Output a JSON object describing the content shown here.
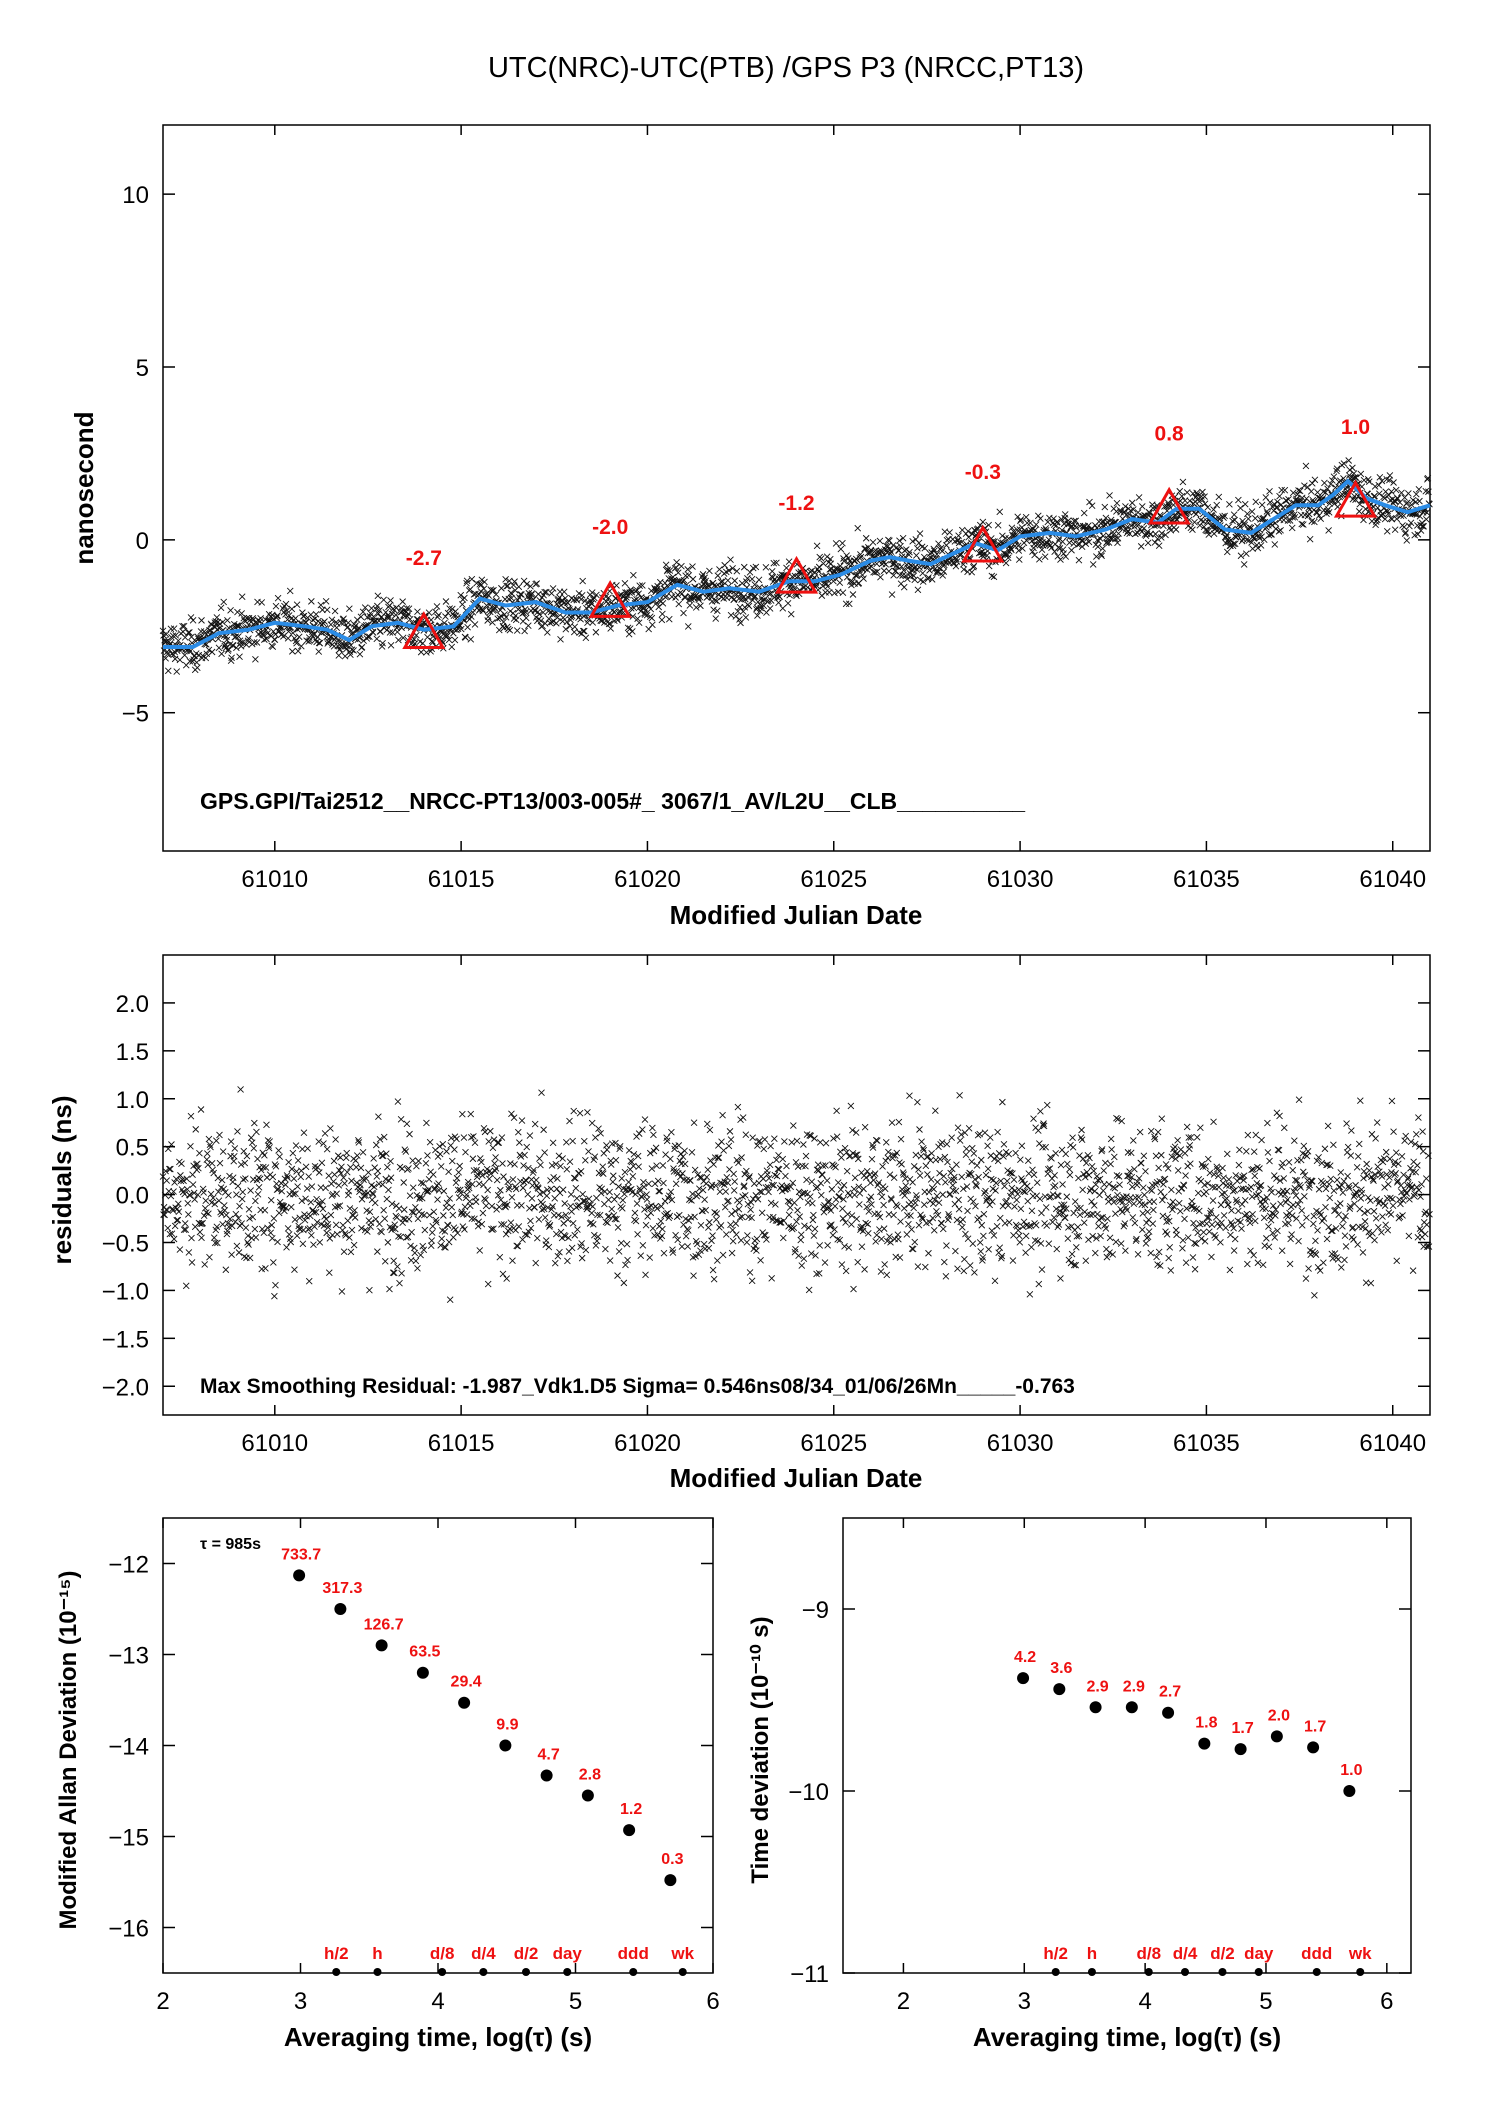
{
  "title": "UTC(NRC)-UTC(PTB)  /GPS  P3  (NRCC,PT13)",
  "colors": {
    "frame": "#000000",
    "points": "#000000",
    "smooth": "#2b8ce6",
    "annot": "#ee1111"
  },
  "chart_data": [
    {
      "type": "scatter",
      "id": "main",
      "xlabel": "Modified Julian Date",
      "ylabel": "nanosecond",
      "xlim": [
        61007.0,
        61041.0
      ],
      "ylim": [
        -9.0,
        12.0
      ],
      "xticks": [
        61010,
        61015,
        61020,
        61025,
        61030,
        61035,
        61040
      ],
      "yticks": [
        -5,
        0,
        5,
        10
      ],
      "ytick_labels": [
        "−5",
        "0",
        "5",
        "10"
      ],
      "annotation": "GPS.GPI/Tai2512__NRCC-PT13/003-005#_  3067/1_AV/L2U__CLB__________",
      "markers": [
        {
          "x": 61014,
          "y": -2.7,
          "label": "-2.7"
        },
        {
          "x": 61019,
          "y": -1.8,
          "label": "-2.0"
        },
        {
          "x": 61024,
          "y": -1.1,
          "label": "-1.2"
        },
        {
          "x": 61029,
          "y": -0.2,
          "label": "-0.3"
        },
        {
          "x": 61034,
          "y": 0.9,
          "label": "0.8"
        },
        {
          "x": 61039,
          "y": 1.1,
          "label": "1.0"
        }
      ],
      "smooth_curve": {
        "x": [
          61007.0,
          61007.8,
          61008.5,
          61009.3,
          61010.0,
          61010.8,
          61011.4,
          61012.0,
          61012.6,
          61013.3,
          61014.0,
          61014.8,
          61015.5,
          61016.2,
          61017.0,
          61017.8,
          61018.5,
          61019.2,
          61020.0,
          61020.8,
          61021.5,
          61022.2,
          61023.0,
          61023.8,
          61024.5,
          61025.2,
          61026.0,
          61026.5,
          61027.0,
          61027.6,
          61028.2,
          61028.8,
          61029.4,
          61030.0,
          61030.8,
          61031.5,
          61032.3,
          61033.0,
          61033.7,
          61034.2,
          61034.8,
          61035.5,
          61036.2,
          61036.8,
          61037.4,
          61038.0,
          61038.4,
          61038.8,
          61039.3,
          61039.8,
          61040.4,
          61041.0
        ],
        "y": [
          -3.1,
          -3.1,
          -2.7,
          -2.6,
          -2.4,
          -2.5,
          -2.6,
          -2.9,
          -2.5,
          -2.4,
          -2.6,
          -2.5,
          -1.7,
          -1.9,
          -1.8,
          -2.1,
          -2.1,
          -1.9,
          -1.8,
          -1.3,
          -1.5,
          -1.4,
          -1.5,
          -1.2,
          -1.2,
          -1.0,
          -0.6,
          -0.5,
          -0.6,
          -0.7,
          -0.4,
          -0.1,
          -0.3,
          0.1,
          0.2,
          0.1,
          0.3,
          0.6,
          0.5,
          0.9,
          0.9,
          0.3,
          0.2,
          0.6,
          1.0,
          1.0,
          1.3,
          1.7,
          1.2,
          1.0,
          0.8,
          1.0
        ]
      },
      "scatter_trend": {
        "x0": 61007.0,
        "y0": -2.9,
        "x1": 61041.0,
        "y1": 1.0
      },
      "scatter_count": 2400
    },
    {
      "type": "scatter",
      "id": "residuals",
      "xlabel": "Modified Julian Date",
      "ylabel": "residuals (ns)",
      "xlim": [
        61007.0,
        61041.0
      ],
      "ylim": [
        -2.3,
        2.5
      ],
      "xticks": [
        61010,
        61015,
        61020,
        61025,
        61030,
        61035,
        61040
      ],
      "yticks": [
        -2.0,
        -1.5,
        -1.0,
        -0.5,
        0.0,
        0.5,
        1.0,
        1.5,
        2.0
      ],
      "ytick_labels": [
        "−2.0",
        "−1.5",
        "−1.0",
        "−0.5",
        "0.0",
        "0.5",
        "1.0",
        "1.5",
        "2.0"
      ],
      "annotation": "Max Smoothing Residual: -1.987_Vdk1.D5  Sigma= 0.546ns08/34_01/06/26Mn_____-0.763",
      "sigma": 0.546,
      "scatter_count": 2400
    },
    {
      "type": "scatter",
      "id": "mdev",
      "xlabel": "Averaging time, log(τ) (s)",
      "ylabel": "Modified Allan Deviation (10⁻¹⁵)",
      "xlim": [
        2.0,
        6.0
      ],
      "ylim": [
        -16.5,
        -11.5
      ],
      "xticks": [
        2,
        3,
        4,
        5,
        6
      ],
      "yticks": [
        -16,
        -15,
        -14,
        -13,
        -12
      ],
      "ytick_labels": [
        "−16",
        "−15",
        "−14",
        "−13",
        "−12"
      ],
      "tau_note": "τ = 985s",
      "points": [
        {
          "x": 2.99,
          "y": -12.13,
          "label": "733.7"
        },
        {
          "x": 3.29,
          "y": -12.5,
          "label": "317.3"
        },
        {
          "x": 3.59,
          "y": -12.9,
          "label": "126.7"
        },
        {
          "x": 3.89,
          "y": -13.2,
          "label": "63.5"
        },
        {
          "x": 4.19,
          "y": -13.53,
          "label": "29.4"
        },
        {
          "x": 4.49,
          "y": -14.0,
          "label": "9.9"
        },
        {
          "x": 4.79,
          "y": -14.33,
          "label": "4.7"
        },
        {
          "x": 5.09,
          "y": -14.55,
          "label": "2.8"
        },
        {
          "x": 5.39,
          "y": -14.93,
          "label": "1.2"
        },
        {
          "x": 5.69,
          "y": -15.48,
          "label": "0.3"
        }
      ],
      "bottom_markers": [
        {
          "x": 3.26,
          "label": "h/2"
        },
        {
          "x": 3.56,
          "label": "h"
        },
        {
          "x": 4.03,
          "label": "d/8"
        },
        {
          "x": 4.33,
          "label": "d/4"
        },
        {
          "x": 4.64,
          "label": "d/2"
        },
        {
          "x": 4.94,
          "label": "day"
        },
        {
          "x": 5.42,
          "label": "ddd"
        },
        {
          "x": 5.78,
          "label": "wk"
        }
      ]
    },
    {
      "type": "scatter",
      "id": "tdev",
      "xlabel": "Averaging time, log(τ) (s)",
      "ylabel": "Time deviation (10⁻¹⁰ s)",
      "xlim": [
        1.5,
        6.2
      ],
      "ylim": [
        -11.0,
        -8.5
      ],
      "xticks": [
        2,
        3,
        4,
        5,
        6
      ],
      "yticks": [
        -11,
        -10,
        -9
      ],
      "ytick_labels": [
        "−11",
        "−10",
        "−9"
      ],
      "points": [
        {
          "x": 2.99,
          "y": -9.38,
          "label": "4.2"
        },
        {
          "x": 3.29,
          "y": -9.44,
          "label": "3.6"
        },
        {
          "x": 3.59,
          "y": -9.54,
          "label": "2.9"
        },
        {
          "x": 3.89,
          "y": -9.54,
          "label": "2.9"
        },
        {
          "x": 4.19,
          "y": -9.57,
          "label": "2.7"
        },
        {
          "x": 4.49,
          "y": -9.74,
          "label": "1.8"
        },
        {
          "x": 4.79,
          "y": -9.77,
          "label": "1.7"
        },
        {
          "x": 5.09,
          "y": -9.7,
          "label": "2.0"
        },
        {
          "x": 5.39,
          "y": -9.76,
          "label": "1.7"
        },
        {
          "x": 5.69,
          "y": -10.0,
          "label": "1.0"
        }
      ],
      "bottom_markers": [
        {
          "x": 3.26,
          "label": "h/2"
        },
        {
          "x": 3.56,
          "label": "h"
        },
        {
          "x": 4.03,
          "label": "d/8"
        },
        {
          "x": 4.33,
          "label": "d/4"
        },
        {
          "x": 4.64,
          "label": "d/2"
        },
        {
          "x": 4.94,
          "label": "day"
        },
        {
          "x": 5.42,
          "label": "ddd"
        },
        {
          "x": 5.78,
          "label": "wk"
        }
      ]
    }
  ]
}
